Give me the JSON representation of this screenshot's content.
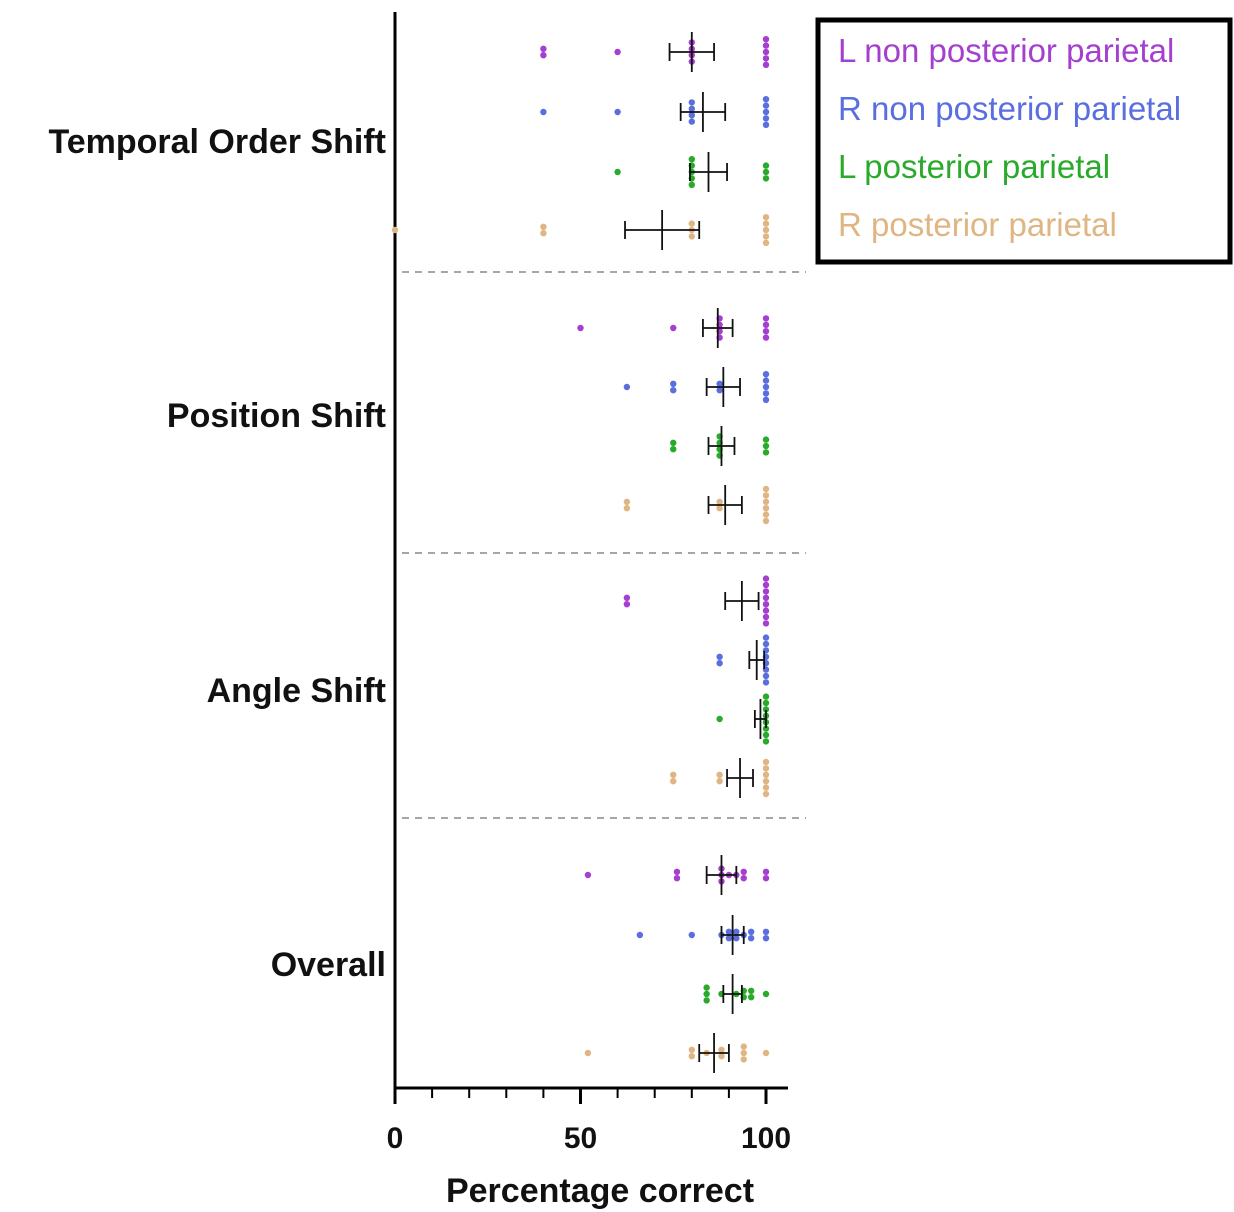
{
  "chart_data": {
    "type": "scatter",
    "orientation": "horizontal",
    "xlabel": "Percentage correct",
    "xlim": [
      0,
      105
    ],
    "x_ticks": [
      0,
      50,
      100
    ],
    "x_tick_labels": [
      "0",
      "50",
      "100"
    ],
    "x_minor_step": 10,
    "categories": [
      "Temporal Order Shift",
      "Position Shift",
      "Angle Shift",
      "Overall"
    ],
    "legend_position": "top-right",
    "series": [
      {
        "name": "L non posterior parietal",
        "color": "#a43fd0",
        "points": [
          [
            40,
            40,
            60,
            80,
            80,
            80,
            80,
            100,
            100,
            100,
            100,
            100
          ],
          [
            50,
            75,
            87.5,
            87.5,
            87.5,
            87.5,
            100,
            100,
            100,
            100
          ],
          [
            62.5,
            62.5,
            100,
            100,
            100,
            100,
            100,
            100,
            100,
            100
          ],
          [
            52,
            76,
            76,
            88,
            88,
            88,
            90,
            92,
            94,
            94,
            100,
            100
          ]
        ],
        "mean": [
          80,
          87,
          93.5,
          88
        ],
        "sem": [
          6,
          4,
          4.5,
          4
        ]
      },
      {
        "name": "R non posterior parietal",
        "color": "#5a6ee0",
        "points": [
          [
            40,
            60,
            80,
            80,
            80,
            80,
            100,
            100,
            100,
            100,
            100
          ],
          [
            62.5,
            75,
            75,
            87.5,
            87.5,
            100,
            100,
            100,
            100,
            100
          ],
          [
            87.5,
            87.5,
            100,
            100,
            100,
            100,
            100,
            100,
            100,
            100
          ],
          [
            66,
            80,
            88,
            90,
            90,
            92,
            92,
            94,
            96,
            96,
            100,
            100
          ]
        ],
        "mean": [
          83,
          88.5,
          97.5,
          91
        ],
        "sem": [
          6,
          4.5,
          2,
          3
        ]
      },
      {
        "name": "L posterior parietal",
        "color": "#2aaa2a",
        "points": [
          [
            60,
            80,
            80,
            80,
            80,
            80,
            100,
            100,
            100
          ],
          [
            75,
            75,
            87.5,
            87.5,
            87.5,
            87.5,
            100,
            100,
            100
          ],
          [
            87.5,
            100,
            100,
            100,
            100,
            100,
            100,
            100,
            100
          ],
          [
            84,
            84,
            84,
            88,
            92,
            94,
            94,
            96,
            96,
            100
          ]
        ],
        "mean": [
          84.5,
          88,
          98.5,
          91
        ],
        "sem": [
          5,
          3.5,
          1.5,
          2.5
        ]
      },
      {
        "name": "R posterior parietal",
        "color": "#e0b584",
        "points": [
          [
            0,
            40,
            40,
            80,
            80,
            80,
            100,
            100,
            100,
            100,
            100
          ],
          [
            62.5,
            62.5,
            87.5,
            87.5,
            100,
            100,
            100,
            100,
            100,
            100
          ],
          [
            75,
            75,
            87.5,
            87.5,
            100,
            100,
            100,
            100,
            100,
            100
          ],
          [
            52,
            80,
            80,
            84,
            88,
            88,
            94,
            94,
            94,
            100
          ]
        ],
        "mean": [
          72,
          89,
          93,
          86
        ],
        "sem": [
          10,
          4.5,
          3.5,
          4
        ]
      }
    ]
  }
}
